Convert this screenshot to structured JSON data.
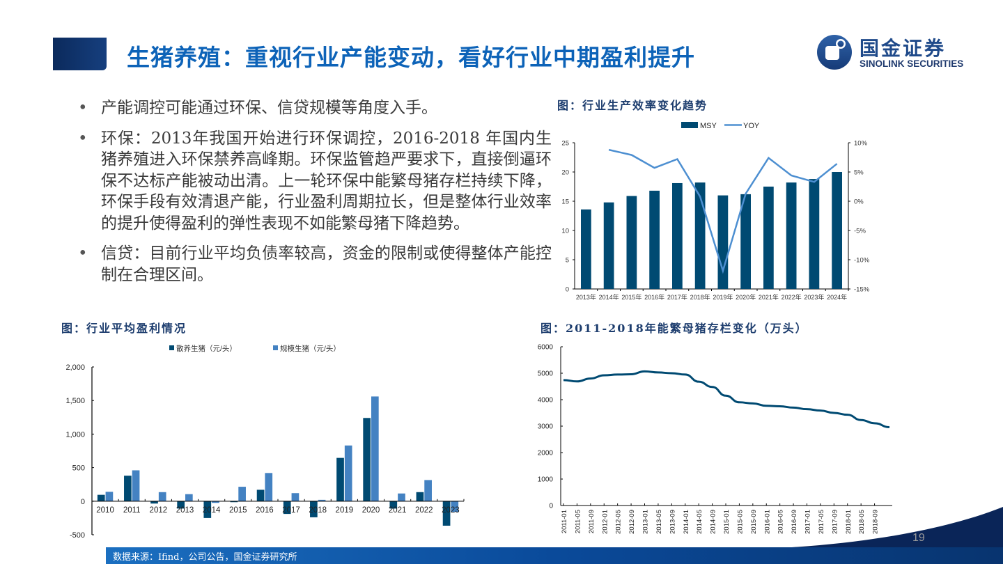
{
  "header": {
    "title": "生猪养殖：重视行业产能变动，看好行业中期盈利提升",
    "logo_cn": "国金证券",
    "logo_en": "SINOLINK SECURITIES",
    "logo_icon": "sinolink-logo-icon"
  },
  "bullets": [
    "产能调控可能通过环保、信贷规模等角度入手。",
    "环保：2013年我国开始进行环保调控，2016-2018 年国内生猪养殖进入环保禁养高峰期。环保监管趋严要求下，直接倒逼环保不达标产能被动出清。上一轮环保中能繁母猪存栏持续下降，环保手段有效清退产能，行业盈利周期拉长，但是整体行业效率的提升使得盈利的弹性表现不如能繁母猪下降趋势。",
    "信贷：目前行业平均负债率较高，资金的限制或使得整体产能控制在合理区间。"
  ],
  "footer": {
    "source": "数据来源：Ifind，公司公告，国金证券研究所",
    "page_number": "19"
  },
  "colors": {
    "title_blue": "#0d63b8",
    "dark_bar": "#004a72",
    "light_bar": "#4482c2",
    "line_blue": "#4d8fd1",
    "footer_blue": "#0a4a9a",
    "navy": "#0b2a5c"
  },
  "chart_data": [
    {
      "id": "efficiency",
      "title": "图：行业生产效率变化趋势",
      "type": "bar+line",
      "categories": [
        "2013年",
        "2014年",
        "2015年",
        "2016年",
        "2017年",
        "2018年",
        "2019年",
        "2020年",
        "2021年",
        "2022年",
        "2023年",
        "2024年"
      ],
      "series": [
        {
          "name": "MSY",
          "type": "bar",
          "axis": "left",
          "values": [
            13.6,
            14.8,
            15.9,
            16.8,
            18.1,
            18.2,
            16.0,
            16.2,
            17.5,
            18.2,
            18.8,
            20.0
          ]
        },
        {
          "name": "YOY",
          "type": "line",
          "axis": "right",
          "values": [
            null,
            8.8,
            7.9,
            5.7,
            7.2,
            0.8,
            -11.9,
            1.3,
            7.4,
            4.4,
            3.3,
            6.4
          ]
        }
      ],
      "left_axis": {
        "min": 0,
        "max": 25,
        "ticks": [
          "0",
          "5",
          "10",
          "15",
          "20",
          "25"
        ]
      },
      "right_axis": {
        "min": -15,
        "max": 10,
        "unit": "%",
        "ticks": [
          "-15%",
          "-10%",
          "-5%",
          "0%",
          "5%",
          "10%"
        ]
      },
      "legend_position": "top"
    },
    {
      "id": "profit",
      "title": "图：行业平均盈利情况",
      "type": "bar",
      "categories": [
        "2010",
        "2011",
        "2012",
        "2013",
        "2014",
        "2015",
        "2016",
        "2017",
        "2018",
        "2019",
        "2020",
        "2021",
        "2022",
        "2023"
      ],
      "series": [
        {
          "name": "散养生猪（元/头）",
          "values": [
            95,
            380,
            -35,
            -110,
            -250,
            -15,
            170,
            -190,
            -240,
            645,
            1240,
            -110,
            135,
            -365
          ]
        },
        {
          "name": "规模生猪（元/头）",
          "values": [
            140,
            460,
            135,
            105,
            -25,
            215,
            420,
            120,
            20,
            830,
            1560,
            115,
            315,
            -160
          ]
        }
      ],
      "ylim": [
        -500,
        2000
      ],
      "ticks": [
        "-500",
        "0",
        "500",
        "1,000",
        "1,500",
        "2,000"
      ],
      "legend_position": "top"
    },
    {
      "id": "sows",
      "title": "图：2011-2018年能繁母猪存栏变化（万头）",
      "type": "line",
      "x_tick_labels": [
        "2011-01",
        "2011-05",
        "2011-09",
        "2012-01",
        "2012-05",
        "2012-09",
        "2013-01",
        "2013-05",
        "2013-09",
        "2014-01",
        "2014-05",
        "2014-09",
        "2015-01",
        "2015-05",
        "2015-09",
        "2016-01",
        "2016-05",
        "2016-09",
        "2017-01",
        "2017-05",
        "2017-09",
        "2018-01",
        "2018-05",
        "2018-09"
      ],
      "values_at_ticks": [
        4740,
        4690,
        4800,
        4920,
        4950,
        4960,
        5070,
        5030,
        5000,
        4950,
        4680,
        4480,
        4150,
        3900,
        3860,
        3770,
        3750,
        3700,
        3640,
        3590,
        3500,
        3430,
        3230,
        3110
      ],
      "end_value": 2960,
      "ylim": [
        0,
        6000
      ],
      "ticks": [
        "0",
        "1000",
        "2000",
        "3000",
        "4000",
        "5000",
        "6000"
      ]
    }
  ]
}
